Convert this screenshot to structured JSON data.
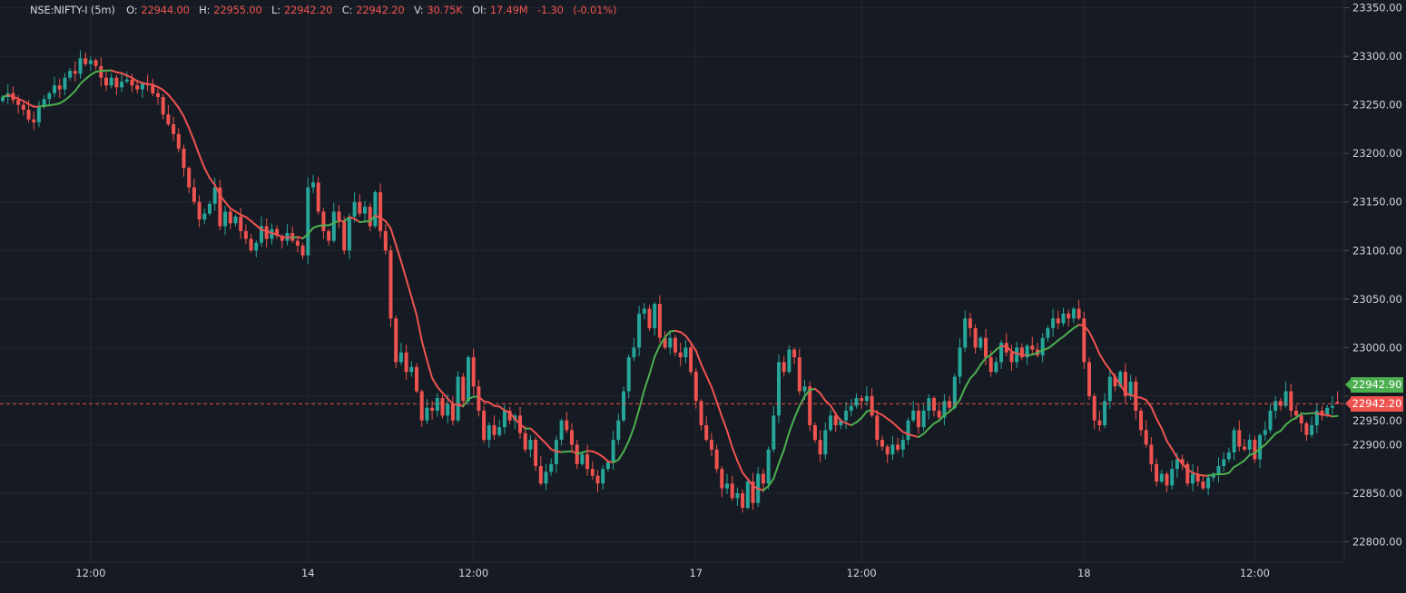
{
  "legend": {
    "symbol": "NSE:NIFTY-I (5m)",
    "open_label": "O:",
    "open": "22944.00",
    "high_label": "H:",
    "high": "22955.00",
    "low_label": "L:",
    "low": "22942.20",
    "close_label": "C:",
    "close": "22942.20",
    "volume_label": "V:",
    "volume": "30.75K",
    "oi_label": "OI:",
    "oi": "17.49M",
    "change": "-1.30",
    "change_pct": "(-0.01%)"
  },
  "price_labels": {
    "ma_value": "22942.90",
    "last_price": "22942.20"
  },
  "colors": {
    "background": "#161a22",
    "grid": "#232732",
    "up": "#26a69a",
    "down": "#ef5350",
    "ma_up": "#4caf50",
    "ma_down": "#ef5350",
    "axis_text": "#d1d4dc"
  },
  "chart_data": {
    "type": "candlestick",
    "interval": "5m",
    "overlay": "moving-average",
    "ylim": [
      22779,
      23358
    ],
    "y_ticks": [
      "22800.00",
      "22850.00",
      "22900.00",
      "22950.00",
      "23000.00",
      "23050.00",
      "23100.00",
      "23150.00",
      "23200.00",
      "23250.00",
      "23300.00",
      "23350.00"
    ],
    "x_ticks": [
      {
        "label": "12:00",
        "index": 17
      },
      {
        "label": "14",
        "index": 59
      },
      {
        "label": "12:00",
        "index": 91
      },
      {
        "label": "17",
        "index": 134
      },
      {
        "label": "12:00",
        "index": 166
      },
      {
        "label": "18",
        "index": 209
      },
      {
        "label": "12:00",
        "index": 242
      }
    ],
    "grid": true,
    "last_candle": {
      "open": 22944.0,
      "high": 22955.0,
      "low": 22942.2,
      "close": 22942.2
    },
    "close": [
      23258,
      23262,
      23255,
      23250,
      23245,
      23235,
      23232,
      23248,
      23256,
      23262,
      23270,
      23266,
      23278,
      23285,
      23282,
      23298,
      23292,
      23296,
      23290,
      23278,
      23270,
      23278,
      23268,
      23274,
      23276,
      23270,
      23266,
      23272,
      23270,
      23262,
      23258,
      23240,
      23230,
      23220,
      23205,
      23185,
      23165,
      23150,
      23132,
      23138,
      23148,
      23165,
      23125,
      23140,
      23128,
      23135,
      23120,
      23112,
      23100,
      23108,
      23125,
      23112,
      23122,
      23115,
      23110,
      23118,
      23110,
      23105,
      23095,
      23165,
      23170,
      23140,
      23120,
      23110,
      23140,
      23130,
      23100,
      23135,
      23150,
      23138,
      23145,
      23125,
      23160,
      23120,
      23100,
      23030,
      22985,
      22995,
      22975,
      22980,
      22955,
      22925,
      22938,
      22935,
      22948,
      22930,
      22942,
      22925,
      22970,
      22945,
      22990,
      22960,
      22935,
      22905,
      22920,
      22910,
      22918,
      22935,
      22925,
      22930,
      22912,
      22895,
      22905,
      22878,
      22860,
      22872,
      22880,
      22905,
      22925,
      22915,
      22900,
      22880,
      22890,
      22875,
      22868,
      22860,
      22875,
      22882,
      22905,
      22925,
      22955,
      22990,
      23000,
      23035,
      23040,
      23020,
      23045,
      23010,
      23000,
      23010,
      22995,
      22990,
      23000,
      22975,
      22945,
      22920,
      22905,
      22895,
      22875,
      22855,
      22860,
      22845,
      22850,
      22835,
      22862,
      22840,
      22870,
      22860,
      22895,
      22930,
      22985,
      22975,
      22998,
      22990,
      22955,
      22960,
      22920,
      22905,
      22890,
      22915,
      22930,
      22920,
      22925,
      22935,
      22940,
      22948,
      22945,
      22950,
      22930,
      22905,
      22898,
      22890,
      22900,
      22895,
      22905,
      22925,
      22935,
      22918,
      22935,
      22948,
      22935,
      22928,
      22945,
      22938,
      22970,
      23000,
      23030,
      23020,
      23000,
      23010,
      22990,
      22975,
      22985,
      23005,
      22995,
      22985,
      23000,
      22990,
      23002,
      22998,
      22992,
      23010,
      23020,
      23030,
      23025,
      23035,
      23030,
      23040,
      23030,
      22985,
      22950,
      22925,
      22920,
      22945,
      22970,
      22960,
      22975,
      22950,
      22965,
      22935,
      22915,
      22900,
      22880,
      22862,
      22870,
      22858,
      22875,
      22885,
      22880,
      22860,
      22870,
      22862,
      22855,
      22866,
      22870,
      22878,
      22885,
      22892,
      22915,
      22898,
      22895,
      22905,
      22885,
      22910,
      22915,
      22935,
      22945,
      22940,
      22955,
      22935,
      22930,
      22922,
      22910,
      22920,
      22935,
      22930,
      22938,
      22940,
      22942.2
    ]
  }
}
